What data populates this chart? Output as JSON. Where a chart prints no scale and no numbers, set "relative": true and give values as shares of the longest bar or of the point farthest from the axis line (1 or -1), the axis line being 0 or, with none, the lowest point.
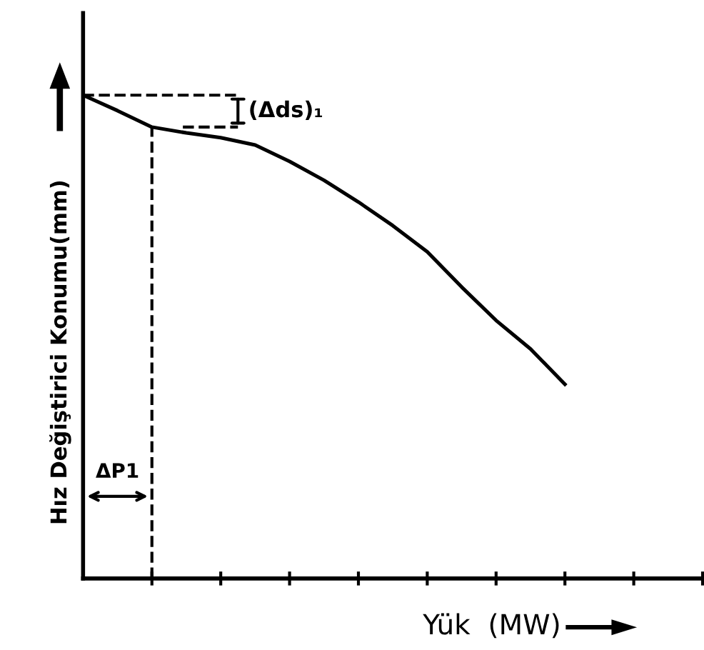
{
  "chart_data": {
    "type": "line",
    "relative": true,
    "xlabel": "Yük  (MW)",
    "ylabel": "Hız Değiştirici Konumu(mm)",
    "categories": [
      null,
      null,
      null,
      null,
      null,
      null,
      null,
      null,
      null,
      null,
      null,
      null,
      null,
      null,
      null
    ],
    "series": [
      {
        "color": "#000000",
        "values": [
          1.0,
          0.968,
          0.934,
          0.922,
          0.912,
          0.897,
          0.863,
          0.824,
          0.779,
          0.73,
          0.676,
          0.603,
          0.534,
          0.475,
          0.402
        ]
      }
    ],
    "marker": "none",
    "line_style": "solid",
    "grid": false,
    "legend": false,
    "tick_labels": false,
    "ref_lines": [
      {
        "axis": "y",
        "value": 1.0,
        "line_style": "dashed",
        "color": "#000000"
      },
      {
        "axis": "y",
        "value": 0.934,
        "line_style": "dashed",
        "color": "#000000"
      }
    ],
    "annotations": [
      "(Δds)₁",
      "ΔP1"
    ]
  }
}
